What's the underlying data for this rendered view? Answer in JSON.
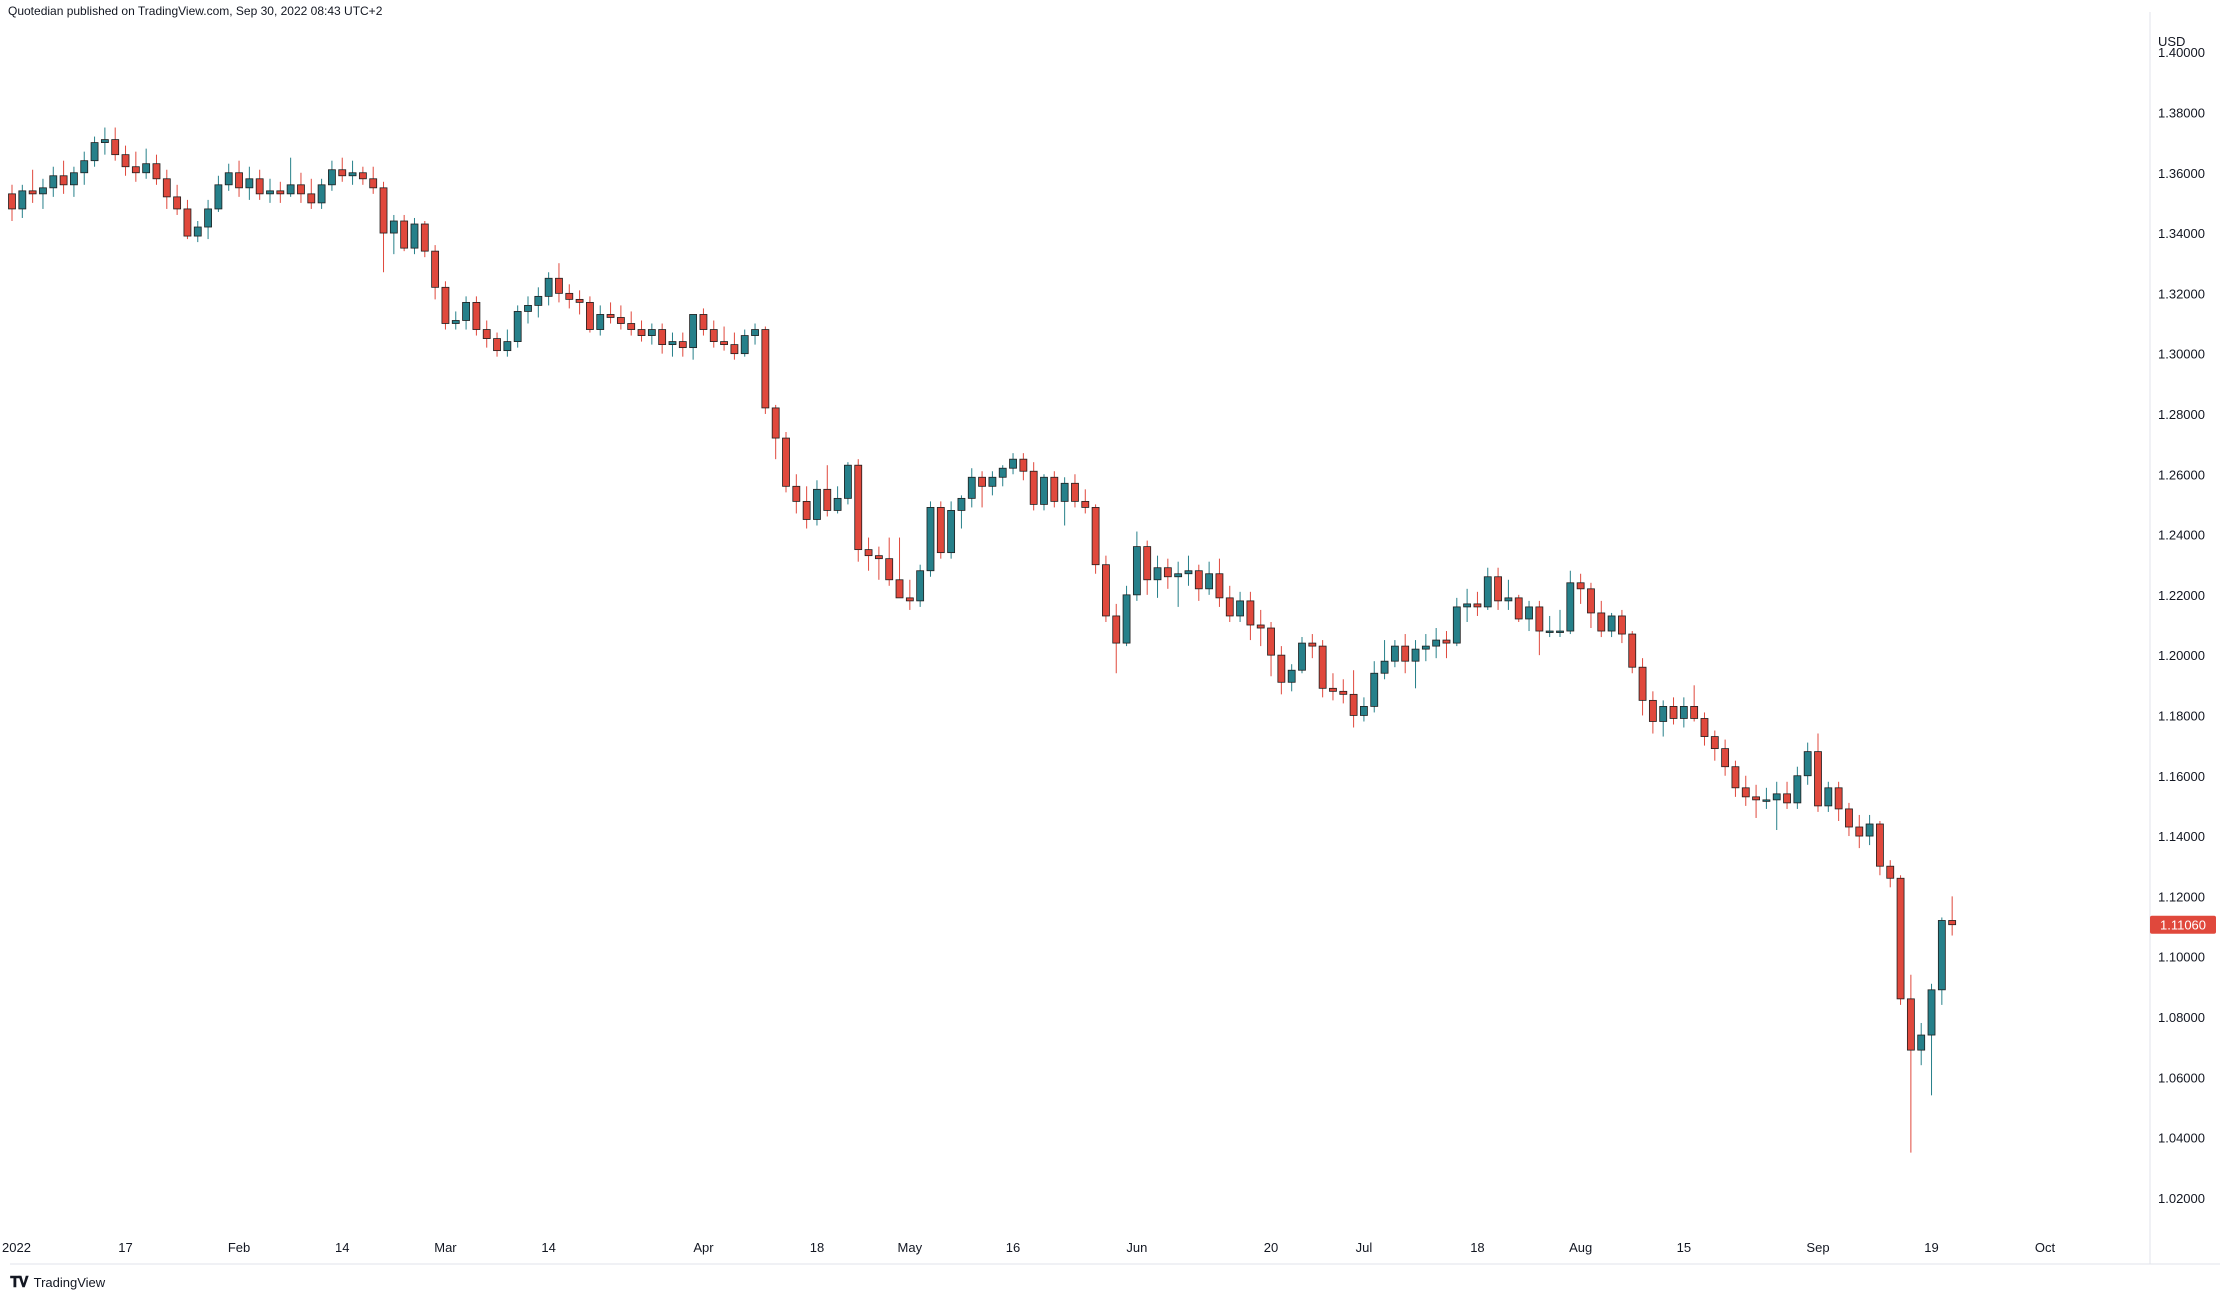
{
  "header": {
    "text": "Quotedian published on TradingView.com, Sep 30, 2022 08:43 UTC+2"
  },
  "footer": {
    "logo_text": "TradingView",
    "logo_icon": "tradingview-logo-icon"
  },
  "colors": {
    "up": "#26808a",
    "down": "#e0483c",
    "up_wick": "#26808a",
    "down_wick": "#e0483c",
    "price_label_bg": "#e0483c"
  },
  "chart_data": {
    "type": "candlestick",
    "y_unit": "USD",
    "ylim": [
      1.01,
      1.41
    ],
    "y_ticks": [
      1.02,
      1.04,
      1.06,
      1.08,
      1.1,
      1.12,
      1.14,
      1.16,
      1.18,
      1.2,
      1.22,
      1.24,
      1.26,
      1.28,
      1.3,
      1.32,
      1.34,
      1.36,
      1.38,
      1.4
    ],
    "y_tick_labels": [
      "1.02000",
      "1.04000",
      "1.06000",
      "1.08000",
      "1.10000",
      "1.12000",
      "1.14000",
      "1.16000",
      "1.18000",
      "1.20000",
      "1.22000",
      "1.24000",
      "1.26000",
      "1.28000",
      "1.30000",
      "1.32000",
      "1.34000",
      "1.36000",
      "1.38000",
      "1.40000"
    ],
    "x_ticks": [
      {
        "label": "2022",
        "index": 0
      },
      {
        "label": "17",
        "index": 11
      },
      {
        "label": "Feb",
        "index": 22
      },
      {
        "label": "14",
        "index": 32
      },
      {
        "label": "Mar",
        "index": 42
      },
      {
        "label": "14",
        "index": 52
      },
      {
        "label": "Apr",
        "index": 67
      },
      {
        "label": "18",
        "index": 78
      },
      {
        "label": "May",
        "index": 87
      },
      {
        "label": "16",
        "index": 97
      },
      {
        "label": "Jun",
        "index": 109
      },
      {
        "label": "20",
        "index": 122
      },
      {
        "label": "Jul",
        "index": 131
      },
      {
        "label": "18",
        "index": 142
      },
      {
        "label": "Aug",
        "index": 152
      },
      {
        "label": "15",
        "index": 162
      },
      {
        "label": "Sep",
        "index": 175
      },
      {
        "label": "19",
        "index": 186
      },
      {
        "label": "Oct",
        "index": 197
      }
    ],
    "last_price": 1.1106,
    "last_price_label": "1.11060",
    "ohlc": [
      [
        1.353,
        1.356,
        1.344,
        1.348
      ],
      [
        1.348,
        1.356,
        1.345,
        1.354
      ],
      [
        1.354,
        1.361,
        1.35,
        1.353
      ],
      [
        1.353,
        1.358,
        1.348,
        1.355
      ],
      [
        1.355,
        1.362,
        1.352,
        1.359
      ],
      [
        1.359,
        1.364,
        1.353,
        1.356
      ],
      [
        1.356,
        1.362,
        1.352,
        1.36
      ],
      [
        1.36,
        1.367,
        1.356,
        1.364
      ],
      [
        1.364,
        1.372,
        1.362,
        1.37
      ],
      [
        1.37,
        1.375,
        1.366,
        1.371
      ],
      [
        1.371,
        1.375,
        1.364,
        1.366
      ],
      [
        1.366,
        1.369,
        1.359,
        1.362
      ],
      [
        1.362,
        1.367,
        1.357,
        1.36
      ],
      [
        1.36,
        1.368,
        1.358,
        1.363
      ],
      [
        1.363,
        1.366,
        1.356,
        1.358
      ],
      [
        1.358,
        1.361,
        1.348,
        1.352
      ],
      [
        1.352,
        1.356,
        1.346,
        1.348
      ],
      [
        1.348,
        1.351,
        1.338,
        1.339
      ],
      [
        1.339,
        1.344,
        1.337,
        1.342
      ],
      [
        1.342,
        1.351,
        1.338,
        1.348
      ],
      [
        1.348,
        1.359,
        1.347,
        1.356
      ],
      [
        1.356,
        1.363,
        1.354,
        1.36
      ],
      [
        1.36,
        1.364,
        1.352,
        1.355
      ],
      [
        1.355,
        1.362,
        1.351,
        1.358
      ],
      [
        1.358,
        1.361,
        1.351,
        1.353
      ],
      [
        1.353,
        1.358,
        1.35,
        1.354
      ],
      [
        1.354,
        1.357,
        1.35,
        1.353
      ],
      [
        1.353,
        1.365,
        1.352,
        1.356
      ],
      [
        1.356,
        1.36,
        1.35,
        1.353
      ],
      [
        1.353,
        1.358,
        1.348,
        1.35
      ],
      [
        1.35,
        1.358,
        1.348,
        1.356
      ],
      [
        1.356,
        1.364,
        1.354,
        1.361
      ],
      [
        1.361,
        1.365,
        1.357,
        1.359
      ],
      [
        1.359,
        1.364,
        1.356,
        1.36
      ],
      [
        1.36,
        1.362,
        1.356,
        1.358
      ],
      [
        1.358,
        1.362,
        1.353,
        1.355
      ],
      [
        1.355,
        1.357,
        1.327,
        1.34
      ],
      [
        1.34,
        1.346,
        1.333,
        1.344
      ],
      [
        1.344,
        1.346,
        1.334,
        1.335
      ],
      [
        1.335,
        1.345,
        1.333,
        1.343
      ],
      [
        1.343,
        1.344,
        1.332,
        1.334
      ],
      [
        1.334,
        1.336,
        1.318,
        1.322
      ],
      [
        1.322,
        1.324,
        1.308,
        1.31
      ],
      [
        1.31,
        1.314,
        1.308,
        1.311
      ],
      [
        1.311,
        1.319,
        1.308,
        1.317
      ],
      [
        1.317,
        1.319,
        1.306,
        1.308
      ],
      [
        1.308,
        1.311,
        1.302,
        1.305
      ],
      [
        1.305,
        1.307,
        1.299,
        1.301
      ],
      [
        1.301,
        1.308,
        1.299,
        1.304
      ],
      [
        1.304,
        1.316,
        1.302,
        1.314
      ],
      [
        1.314,
        1.319,
        1.31,
        1.316
      ],
      [
        1.316,
        1.322,
        1.312,
        1.319
      ],
      [
        1.319,
        1.327,
        1.316,
        1.325
      ],
      [
        1.325,
        1.33,
        1.317,
        1.32
      ],
      [
        1.32,
        1.323,
        1.315,
        1.318
      ],
      [
        1.318,
        1.321,
        1.313,
        1.317
      ],
      [
        1.317,
        1.319,
        1.307,
        1.308
      ],
      [
        1.308,
        1.316,
        1.306,
        1.313
      ],
      [
        1.313,
        1.317,
        1.31,
        1.312
      ],
      [
        1.312,
        1.316,
        1.308,
        1.31
      ],
      [
        1.31,
        1.314,
        1.306,
        1.308
      ],
      [
        1.308,
        1.311,
        1.304,
        1.306
      ],
      [
        1.306,
        1.31,
        1.303,
        1.308
      ],
      [
        1.308,
        1.31,
        1.3,
        1.303
      ],
      [
        1.303,
        1.307,
        1.299,
        1.304
      ],
      [
        1.304,
        1.307,
        1.299,
        1.302
      ],
      [
        1.302,
        1.313,
        1.298,
        1.313
      ],
      [
        1.313,
        1.315,
        1.306,
        1.308
      ],
      [
        1.308,
        1.311,
        1.302,
        1.304
      ],
      [
        1.304,
        1.309,
        1.301,
        1.303
      ],
      [
        1.303,
        1.307,
        1.298,
        1.3
      ],
      [
        1.3,
        1.308,
        1.299,
        1.306
      ],
      [
        1.306,
        1.31,
        1.303,
        1.308
      ],
      [
        1.308,
        1.309,
        1.28,
        1.282
      ],
      [
        1.282,
        1.283,
        1.265,
        1.272
      ],
      [
        1.272,
        1.274,
        1.254,
        1.256
      ],
      [
        1.256,
        1.26,
        1.247,
        1.251
      ],
      [
        1.251,
        1.256,
        1.242,
        1.245
      ],
      [
        1.245,
        1.258,
        1.243,
        1.255
      ],
      [
        1.255,
        1.263,
        1.246,
        1.248
      ],
      [
        1.248,
        1.256,
        1.247,
        1.252
      ],
      [
        1.252,
        1.264,
        1.25,
        1.263
      ],
      [
        1.263,
        1.265,
        1.231,
        1.235
      ],
      [
        1.235,
        1.239,
        1.228,
        1.233
      ],
      [
        1.233,
        1.236,
        1.225,
        1.232
      ],
      [
        1.232,
        1.239,
        1.223,
        1.225
      ],
      [
        1.225,
        1.239,
        1.219,
        1.219
      ],
      [
        1.219,
        1.225,
        1.215,
        1.218
      ],
      [
        1.218,
        1.23,
        1.216,
        1.228
      ],
      [
        1.228,
        1.251,
        1.226,
        1.249
      ],
      [
        1.249,
        1.251,
        1.232,
        1.234
      ],
      [
        1.234,
        1.251,
        1.232,
        1.248
      ],
      [
        1.248,
        1.253,
        1.242,
        1.252
      ],
      [
        1.252,
        1.262,
        1.249,
        1.259
      ],
      [
        1.259,
        1.261,
        1.249,
        1.256
      ],
      [
        1.256,
        1.261,
        1.253,
        1.259
      ],
      [
        1.259,
        1.263,
        1.256,
        1.262
      ],
      [
        1.262,
        1.267,
        1.26,
        1.265
      ],
      [
        1.265,
        1.267,
        1.258,
        1.261
      ],
      [
        1.261,
        1.264,
        1.248,
        1.25
      ],
      [
        1.25,
        1.26,
        1.248,
        1.259
      ],
      [
        1.259,
        1.261,
        1.249,
        1.251
      ],
      [
        1.251,
        1.259,
        1.243,
        1.257
      ],
      [
        1.257,
        1.26,
        1.249,
        1.251
      ],
      [
        1.251,
        1.255,
        1.247,
        1.249
      ],
      [
        1.249,
        1.25,
        1.227,
        1.23
      ],
      [
        1.23,
        1.233,
        1.211,
        1.213
      ],
      [
        1.213,
        1.217,
        1.194,
        1.204
      ],
      [
        1.204,
        1.223,
        1.203,
        1.22
      ],
      [
        1.22,
        1.241,
        1.218,
        1.236
      ],
      [
        1.236,
        1.238,
        1.22,
        1.225
      ],
      [
        1.225,
        1.233,
        1.219,
        1.229
      ],
      [
        1.229,
        1.232,
        1.222,
        1.226
      ],
      [
        1.226,
        1.231,
        1.216,
        1.227
      ],
      [
        1.227,
        1.233,
        1.223,
        1.228
      ],
      [
        1.228,
        1.23,
        1.218,
        1.222
      ],
      [
        1.222,
        1.231,
        1.22,
        1.227
      ],
      [
        1.227,
        1.232,
        1.216,
        1.219
      ],
      [
        1.219,
        1.223,
        1.211,
        1.213
      ],
      [
        1.213,
        1.221,
        1.211,
        1.218
      ],
      [
        1.218,
        1.221,
        1.205,
        1.21
      ],
      [
        1.21,
        1.215,
        1.203,
        1.209
      ],
      [
        1.209,
        1.211,
        1.193,
        1.2
      ],
      [
        1.2,
        1.203,
        1.187,
        1.191
      ],
      [
        1.191,
        1.197,
        1.188,
        1.195
      ],
      [
        1.195,
        1.206,
        1.194,
        1.204
      ],
      [
        1.204,
        1.207,
        1.199,
        1.203
      ],
      [
        1.203,
        1.205,
        1.186,
        1.189
      ],
      [
        1.189,
        1.194,
        1.185,
        1.188
      ],
      [
        1.188,
        1.192,
        1.184,
        1.187
      ],
      [
        1.187,
        1.195,
        1.176,
        1.18
      ],
      [
        1.18,
        1.186,
        1.178,
        1.183
      ],
      [
        1.183,
        1.198,
        1.181,
        1.194
      ],
      [
        1.194,
        1.205,
        1.192,
        1.198
      ],
      [
        1.198,
        1.205,
        1.196,
        1.203
      ],
      [
        1.203,
        1.207,
        1.194,
        1.198
      ],
      [
        1.198,
        1.205,
        1.189,
        1.202
      ],
      [
        1.202,
        1.207,
        1.198,
        1.203
      ],
      [
        1.203,
        1.209,
        1.199,
        1.205
      ],
      [
        1.205,
        1.208,
        1.199,
        1.204
      ],
      [
        1.204,
        1.219,
        1.203,
        1.216
      ],
      [
        1.216,
        1.222,
        1.211,
        1.217
      ],
      [
        1.217,
        1.221,
        1.213,
        1.216
      ],
      [
        1.216,
        1.229,
        1.215,
        1.226
      ],
      [
        1.226,
        1.229,
        1.215,
        1.218
      ],
      [
        1.218,
        1.225,
        1.215,
        1.219
      ],
      [
        1.219,
        1.22,
        1.211,
        1.212
      ],
      [
        1.212,
        1.218,
        1.208,
        1.216
      ],
      [
        1.216,
        1.218,
        1.2,
        1.208
      ],
      [
        1.208,
        1.213,
        1.206,
        1.208
      ],
      [
        1.208,
        1.215,
        1.206,
        1.208
      ],
      [
        1.208,
        1.228,
        1.207,
        1.224
      ],
      [
        1.224,
        1.227,
        1.217,
        1.222
      ],
      [
        1.222,
        1.224,
        1.209,
        1.214
      ],
      [
        1.214,
        1.218,
        1.206,
        1.208
      ],
      [
        1.208,
        1.214,
        1.206,
        1.213
      ],
      [
        1.213,
        1.215,
        1.204,
        1.207
      ],
      [
        1.207,
        1.208,
        1.194,
        1.196
      ],
      [
        1.196,
        1.199,
        1.18,
        1.185
      ],
      [
        1.185,
        1.188,
        1.174,
        1.178
      ],
      [
        1.178,
        1.185,
        1.173,
        1.183
      ],
      [
        1.183,
        1.186,
        1.177,
        1.179
      ],
      [
        1.179,
        1.186,
        1.176,
        1.183
      ],
      [
        1.183,
        1.19,
        1.178,
        1.179
      ],
      [
        1.179,
        1.181,
        1.17,
        1.173
      ],
      [
        1.173,
        1.175,
        1.165,
        1.169
      ],
      [
        1.169,
        1.172,
        1.16,
        1.163
      ],
      [
        1.163,
        1.165,
        1.153,
        1.156
      ],
      [
        1.156,
        1.16,
        1.15,
        1.153
      ],
      [
        1.153,
        1.157,
        1.146,
        1.152
      ],
      [
        1.152,
        1.156,
        1.149,
        1.152
      ],
      [
        1.152,
        1.158,
        1.142,
        1.154
      ],
      [
        1.154,
        1.158,
        1.149,
        1.151
      ],
      [
        1.151,
        1.163,
        1.149,
        1.16
      ],
      [
        1.16,
        1.171,
        1.157,
        1.168
      ],
      [
        1.168,
        1.174,
        1.148,
        1.15
      ],
      [
        1.15,
        1.158,
        1.148,
        1.156
      ],
      [
        1.156,
        1.158,
        1.145,
        1.149
      ],
      [
        1.149,
        1.151,
        1.14,
        1.143
      ],
      [
        1.143,
        1.147,
        1.136,
        1.14
      ],
      [
        1.14,
        1.147,
        1.137,
        1.144
      ],
      [
        1.144,
        1.145,
        1.127,
        1.13
      ],
      [
        1.13,
        1.132,
        1.123,
        1.126
      ],
      [
        1.126,
        1.127,
        1.084,
        1.086
      ],
      [
        1.086,
        1.094,
        1.035,
        1.069
      ],
      [
        1.069,
        1.078,
        1.064,
        1.074
      ],
      [
        1.074,
        1.091,
        1.054,
        1.089
      ],
      [
        1.089,
        1.113,
        1.084,
        1.112
      ],
      [
        1.112,
        1.12,
        1.107,
        1.1106
      ]
    ]
  }
}
